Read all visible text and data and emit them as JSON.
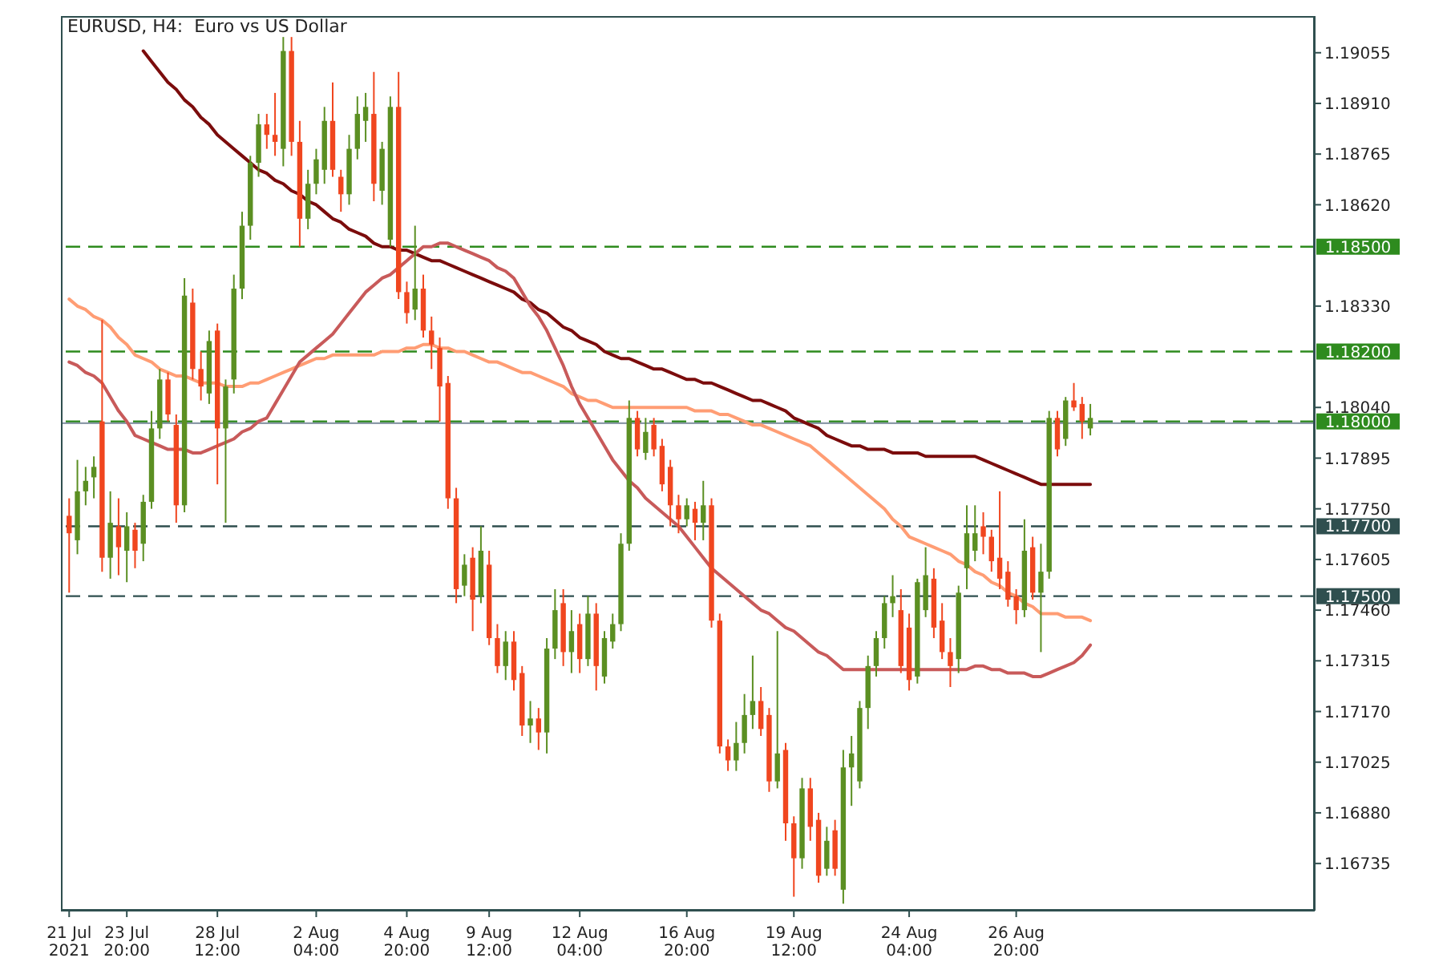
{
  "chart_data": {
    "type": "candlestick",
    "title": "EURUSD, H4:  Euro vs US Dollar",
    "categories": [
      "21 Jul 2021",
      null,
      null,
      null,
      null,
      null,
      null,
      "23 Jul 20:00",
      null,
      null,
      null,
      null,
      null,
      null,
      null,
      null,
      null,
      null,
      "28 Jul 12:00",
      null,
      null,
      null,
      null,
      null,
      null,
      null,
      null,
      null,
      null,
      null,
      "2 Aug 04:00",
      null,
      null,
      null,
      null,
      null,
      null,
      null,
      null,
      null,
      null,
      "4 Aug 20:00",
      null,
      null,
      null,
      null,
      null,
      null,
      null,
      null,
      null,
      "9 Aug 12:00",
      null,
      null,
      null,
      null,
      null,
      null,
      null,
      null,
      null,
      null,
      "12 Aug 04:00",
      null,
      null,
      null,
      null,
      null,
      null,
      null,
      null,
      null,
      null,
      null,
      null,
      "16 Aug 20:00",
      null,
      null,
      null,
      null,
      null,
      null,
      null,
      null,
      null,
      null,
      null,
      null,
      "19 Aug 12:00",
      null,
      null,
      null,
      null,
      null,
      null,
      null,
      null,
      null,
      null,
      null,
      null,
      null,
      "24 Aug 04:00",
      null,
      null,
      null,
      null,
      null,
      null,
      null,
      null,
      null,
      null,
      null,
      null,
      "26 Aug 20:00",
      null,
      null,
      null,
      null,
      null,
      null,
      null,
      null,
      null
    ],
    "ylim": [
      1.166,
      1.1916
    ],
    "yticks": [
      1.19055,
      {
        "value": 1.1891,
        "label": "1.18910"
      },
      1.18765,
      {
        "value": 1.1862,
        "label": "1.18620"
      },
      {
        "value": 1.1833,
        "label": "1.18330"
      },
      {
        "value": 1.1804,
        "label": "1.18040"
      },
      1.17895,
      {
        "value": 1.1775,
        "label": "1.17750"
      },
      1.17605,
      {
        "value": 1.1746,
        "label": "1.17460"
      },
      1.17315,
      {
        "value": 1.1717,
        "label": "1.17170"
      },
      1.17025,
      {
        "value": 1.1688,
        "label": "1.16880"
      },
      1.16735
    ],
    "ref_lines": [
      {
        "axis": "y",
        "value": 1.185,
        "label": "1.18500",
        "color": "#2e8b1e",
        "line_style": "dashed"
      },
      {
        "axis": "y",
        "value": 1.182,
        "label": "1.18200",
        "color": "#2e8b1e",
        "line_style": "dashed"
      },
      {
        "axis": "y",
        "value": 1.18,
        "label": "1.18000",
        "color": "#2e8b1e",
        "line_style": "dashed"
      },
      {
        "axis": "y",
        "value": 1.177,
        "label": "1.17700",
        "color": "#2f4f4f",
        "line_style": "dashed"
      },
      {
        "axis": "y",
        "value": 1.175,
        "label": "1.17500",
        "color": "#2f4f4f",
        "line_style": "dashed"
      },
      {
        "axis": "y",
        "value": 1.17995,
        "label": null,
        "color": "#8c9aa8",
        "line_style": "solid"
      }
    ],
    "ohlc": [
      [
        1.1773,
        1.1778,
        1.1751,
        1.1768
      ],
      [
        1.1766,
        1.1789,
        1.1762,
        1.178
      ],
      [
        1.178,
        1.1787,
        1.1776,
        1.1783
      ],
      [
        1.1784,
        1.179,
        1.1778,
        1.1787
      ],
      [
        1.18,
        1.1829,
        1.1757,
        1.1761
      ],
      [
        1.1761,
        1.178,
        1.1755,
        1.1771
      ],
      [
        1.177,
        1.1778,
        1.1756,
        1.1764
      ],
      [
        1.1763,
        1.1774,
        1.1754,
        1.177
      ],
      [
        1.1769,
        1.1771,
        1.1758,
        1.1763
      ],
      [
        1.1765,
        1.1779,
        1.176,
        1.1777
      ],
      [
        1.1777,
        1.1803,
        1.1775,
        1.1798
      ],
      [
        1.1798,
        1.1815,
        1.1795,
        1.1812
      ],
      [
        1.1812,
        1.1814,
        1.18,
        1.1802
      ],
      [
        1.1799,
        1.1802,
        1.1771,
        1.1776
      ],
      [
        1.1776,
        1.1841,
        1.1774,
        1.1836
      ],
      [
        1.1834,
        1.1838,
        1.1812,
        1.1815
      ],
      [
        1.1815,
        1.182,
        1.1806,
        1.181
      ],
      [
        1.1808,
        1.1826,
        1.1805,
        1.1823
      ],
      [
        1.1826,
        1.1828,
        1.1782,
        1.1798
      ],
      [
        1.1798,
        1.1812,
        1.1771,
        1.181
      ],
      [
        1.1812,
        1.1842,
        1.1808,
        1.1838
      ],
      [
        1.1838,
        1.186,
        1.1835,
        1.1856
      ],
      [
        1.1856,
        1.1876,
        1.1852,
        1.1874
      ],
      [
        1.1874,
        1.1888,
        1.187,
        1.1885
      ],
      [
        1.1885,
        1.1888,
        1.1878,
        1.1882
      ],
      [
        1.1882,
        1.1894,
        1.1876,
        1.188
      ],
      [
        1.1878,
        1.191,
        1.1873,
        1.1906
      ],
      [
        1.1906,
        1.191,
        1.1876,
        1.188
      ],
      [
        1.188,
        1.1886,
        1.185,
        1.1858
      ],
      [
        1.1858,
        1.1872,
        1.1855,
        1.1868
      ],
      [
        1.1868,
        1.1878,
        1.1865,
        1.1875
      ],
      [
        1.1872,
        1.189,
        1.1868,
        1.1886
      ],
      [
        1.1886,
        1.1897,
        1.187,
        1.1872
      ],
      [
        1.187,
        1.1872,
        1.186,
        1.1865
      ],
      [
        1.1865,
        1.1882,
        1.1862,
        1.1878
      ],
      [
        1.1878,
        1.1893,
        1.1875,
        1.1888
      ],
      [
        1.1886,
        1.1894,
        1.188,
        1.189
      ],
      [
        1.1888,
        1.19,
        1.1863,
        1.1868
      ],
      [
        1.1866,
        1.188,
        1.1862,
        1.1878
      ],
      [
        1.1852,
        1.1893,
        1.185,
        1.189
      ],
      [
        1.189,
        1.19,
        1.1835,
        1.1837
      ],
      [
        1.1837,
        1.184,
        1.1828,
        1.1831
      ],
      [
        1.1832,
        1.1856,
        1.1829,
        1.1838
      ],
      [
        1.1838,
        1.1842,
        1.1824,
        1.1826
      ],
      [
        1.1826,
        1.183,
        1.1815,
        1.1822
      ],
      [
        1.1821,
        1.1824,
        1.18,
        1.181
      ],
      [
        1.1811,
        1.1813,
        1.1775,
        1.1778
      ],
      [
        1.1778,
        1.1781,
        1.1748,
        1.1752
      ],
      [
        1.1753,
        1.1762,
        1.175,
        1.1759
      ],
      [
        1.1761,
        1.1764,
        1.174,
        1.1749
      ],
      [
        1.175,
        1.177,
        1.1748,
        1.1763
      ],
      [
        1.1759,
        1.1763,
        1.1736,
        1.1738
      ],
      [
        1.1738,
        1.1742,
        1.1728,
        1.173
      ],
      [
        1.173,
        1.174,
        1.1726,
        1.1737
      ],
      [
        1.1737,
        1.174,
        1.1723,
        1.1726
      ],
      [
        1.1728,
        1.173,
        1.171,
        1.1713
      ],
      [
        1.1713,
        1.172,
        1.1708,
        1.1715
      ],
      [
        1.1715,
        1.1718,
        1.1706,
        1.1711
      ],
      [
        1.1711,
        1.1738,
        1.1705,
        1.1735
      ],
      [
        1.1735,
        1.1752,
        1.1732,
        1.1746
      ],
      [
        1.1748,
        1.1752,
        1.173,
        1.1734
      ],
      [
        1.1734,
        1.1746,
        1.1728,
        1.174
      ],
      [
        1.1742,
        1.1745,
        1.1728,
        1.1732
      ],
      [
        1.1732,
        1.175,
        1.173,
        1.1745
      ],
      [
        1.1745,
        1.1748,
        1.1723,
        1.173
      ],
      [
        1.1727,
        1.174,
        1.1725,
        1.1738
      ],
      [
        1.1737,
        1.1745,
        1.1735,
        1.1742
      ],
      [
        1.1742,
        1.1768,
        1.174,
        1.1765
      ],
      [
        1.1765,
        1.1806,
        1.1763,
        1.1801
      ],
      [
        1.1801,
        1.1803,
        1.179,
        1.1792
      ],
      [
        1.1791,
        1.1801,
        1.1789,
        1.1797
      ],
      [
        1.1799,
        1.1801,
        1.179,
        1.1792
      ],
      [
        1.1793,
        1.1795,
        1.178,
        1.1782
      ],
      [
        1.1787,
        1.1789,
        1.177,
        1.1776
      ],
      [
        1.1776,
        1.1779,
        1.1768,
        1.1772
      ],
      [
        1.1772,
        1.1778,
        1.177,
        1.1776
      ],
      [
        1.1775,
        1.1777,
        1.1766,
        1.1771
      ],
      [
        1.1771,
        1.1783,
        1.1766,
        1.1776
      ],
      [
        1.1776,
        1.1778,
        1.1741,
        1.1743
      ],
      [
        1.1743,
        1.1745,
        1.1705,
        1.1707
      ],
      [
        1.1707,
        1.1709,
        1.17,
        1.1703
      ],
      [
        1.1703,
        1.1714,
        1.17,
        1.1708
      ],
      [
        1.1708,
        1.1722,
        1.1705,
        1.1716
      ],
      [
        1.1716,
        1.1733,
        1.1712,
        1.172
      ],
      [
        1.172,
        1.1724,
        1.171,
        1.1712
      ],
      [
        1.1716,
        1.1718,
        1.1694,
        1.1697
      ],
      [
        1.1697,
        1.174,
        1.1695,
        1.1705
      ],
      [
        1.1706,
        1.1708,
        1.168,
        1.1685
      ],
      [
        1.1685,
        1.1687,
        1.1664,
        1.1675
      ],
      [
        1.1675,
        1.1698,
        1.1672,
        1.1695
      ],
      [
        1.1695,
        1.1698,
        1.168,
        1.1684
      ],
      [
        1.1686,
        1.1688,
        1.1668,
        1.167
      ],
      [
        1.1672,
        1.1684,
        1.167,
        1.168
      ],
      [
        1.1683,
        1.1686,
        1.167,
        1.1672
      ],
      [
        1.1666,
        1.1706,
        1.1662,
        1.1701
      ],
      [
        1.1701,
        1.171,
        1.169,
        1.1705
      ],
      [
        1.1697,
        1.172,
        1.1695,
        1.1718
      ],
      [
        1.1718,
        1.1733,
        1.1712,
        1.173
      ],
      [
        1.173,
        1.174,
        1.1727,
        1.1738
      ],
      [
        1.1738,
        1.175,
        1.1735,
        1.1748
      ],
      [
        1.1748,
        1.1756,
        1.1744,
        1.175
      ],
      [
        1.1746,
        1.1752,
        1.1728,
        1.173
      ],
      [
        1.1741,
        1.1745,
        1.1723,
        1.1726
      ],
      [
        1.1727,
        1.1755,
        1.1725,
        1.1754
      ],
      [
        1.1746,
        1.1764,
        1.1744,
        1.1756
      ],
      [
        1.1755,
        1.1758,
        1.1738,
        1.1741
      ],
      [
        1.1743,
        1.1748,
        1.1732,
        1.1734
      ],
      [
        1.1734,
        1.1738,
        1.1724,
        1.173
      ],
      [
        1.1732,
        1.1753,
        1.1728,
        1.1751
      ],
      [
        1.1758,
        1.1776,
        1.1752,
        1.1768
      ],
      [
        1.1763,
        1.1776,
        1.176,
        1.1768
      ],
      [
        1.177,
        1.1774,
        1.1762,
        1.1767
      ],
      [
        1.1767,
        1.1769,
        1.1757,
        1.176
      ],
      [
        1.1761,
        1.178,
        1.1752,
        1.1755
      ],
      [
        1.1757,
        1.176,
        1.1747,
        1.1749
      ],
      [
        1.175,
        1.1752,
        1.1742,
        1.1746
      ],
      [
        1.1746,
        1.1772,
        1.1744,
        1.1763
      ],
      [
        1.1764,
        1.1767,
        1.1749,
        1.1751
      ],
      [
        1.1751,
        1.1765,
        1.1734,
        1.1757
      ],
      [
        1.1757,
        1.1803,
        1.1755,
        1.1801
      ],
      [
        1.1801,
        1.1803,
        1.179,
        1.1792
      ],
      [
        1.1795,
        1.1807,
        1.1793,
        1.1806
      ],
      [
        1.1806,
        1.1811,
        1.1803,
        1.1804
      ],
      [
        1.1805,
        1.1807,
        1.1795,
        1.18
      ],
      [
        1.1798,
        1.1805,
        1.1796,
        1.1801
      ]
    ],
    "colors": [
      "#f0461f",
      "#5b8f22",
      "#5b8f22",
      "#5b8f22",
      "#f0461f",
      "#5b8f22",
      "#f0461f",
      "#5b8f22",
      "#f0461f",
      "#5b8f22",
      "#5b8f22",
      "#5b8f22",
      "#f0461f",
      "#f0461f",
      "#5b8f22",
      "#f0461f",
      "#f0461f",
      "#5b8f22",
      "#f0461f",
      "#5b8f22",
      "#5b8f22",
      "#5b8f22",
      "#5b8f22",
      "#5b8f22",
      "#f0461f",
      "#f0461f",
      "#5b8f22",
      "#f0461f",
      "#f0461f",
      "#5b8f22",
      "#5b8f22",
      "#5b8f22",
      "#f0461f",
      "#f0461f",
      "#5b8f22",
      "#5b8f22",
      "#5b8f22",
      "#f0461f",
      "#5b8f22",
      "#5b8f22",
      "#f0461f",
      "#f0461f",
      "#5b8f22",
      "#f0461f",
      "#f0461f",
      "#f0461f",
      "#f0461f",
      "#f0461f",
      "#5b8f22",
      "#f0461f",
      "#5b8f22",
      "#f0461f",
      "#f0461f",
      "#5b8f22",
      "#f0461f",
      "#f0461f",
      "#5b8f22",
      "#f0461f",
      "#5b8f22",
      "#5b8f22",
      "#f0461f",
      "#5b8f22",
      "#f0461f",
      "#5b8f22",
      "#f0461f",
      "#5b8f22",
      "#5b8f22",
      "#5b8f22",
      "#5b8f22",
      "#f0461f",
      "#5b8f22",
      "#f0461f",
      "#f0461f",
      "#f0461f",
      "#f0461f",
      "#5b8f22",
      "#f0461f",
      "#5b8f22",
      "#f0461f",
      "#f0461f",
      "#f0461f",
      "#5b8f22",
      "#5b8f22",
      "#5b8f22",
      "#f0461f",
      "#f0461f",
      "#5b8f22",
      "#f0461f",
      "#f0461f",
      "#5b8f22",
      "#f0461f",
      "#f0461f",
      "#5b8f22",
      "#f0461f",
      "#5b8f22",
      "#5b8f22",
      "#5b8f22",
      "#5b8f22",
      "#5b8f22",
      "#5b8f22",
      "#5b8f22",
      "#f0461f",
      "#f0461f",
      "#5b8f22",
      "#5b8f22",
      "#f0461f",
      "#f0461f",
      "#f0461f",
      "#5b8f22",
      "#5b8f22",
      "#5b8f22",
      "#f0461f",
      "#f0461f",
      "#f0461f",
      "#f0461f",
      "#f0461f",
      "#5b8f22",
      "#f0461f",
      "#5b8f22",
      "#5b8f22",
      "#f0461f",
      "#5b8f22",
      "#f0461f",
      "#f0461f",
      "#5b8f22"
    ],
    "series": [
      {
        "type": "line",
        "color": "#7b0c0c",
        "values": [
          null,
          null,
          null,
          null,
          null,
          null,
          null,
          null,
          null,
          1.1906,
          1.1903,
          1.19,
          1.1897,
          1.1895,
          1.1892,
          1.189,
          1.1887,
          1.1885,
          1.1882,
          1.188,
          1.1878,
          1.1876,
          1.1874,
          1.1872,
          1.1871,
          1.1869,
          1.1868,
          1.1866,
          1.1865,
          1.1863,
          1.1862,
          1.186,
          1.1858,
          1.1857,
          1.1855,
          1.1854,
          1.1853,
          1.1851,
          1.185,
          1.185,
          1.1849,
          1.1849,
          1.1848,
          1.1847,
          1.1846,
          1.1846,
          1.1845,
          1.1844,
          1.1843,
          1.1842,
          1.1841,
          1.184,
          1.1839,
          1.1838,
          1.1837,
          1.1835,
          1.1834,
          1.1832,
          1.1831,
          1.1829,
          1.1827,
          1.1826,
          1.1824,
          1.1823,
          1.1822,
          1.182,
          1.1819,
          1.1818,
          1.1818,
          1.1817,
          1.1816,
          1.1815,
          1.1815,
          1.1814,
          1.1813,
          1.1812,
          1.1812,
          1.1811,
          1.1811,
          1.181,
          1.1809,
          1.1808,
          1.1807,
          1.1806,
          1.1806,
          1.1805,
          1.1804,
          1.1803,
          1.1801,
          1.18,
          1.1799,
          1.1798,
          1.1796,
          1.1795,
          1.1794,
          1.1793,
          1.1793,
          1.1792,
          1.1792,
          1.1792,
          1.1791,
          1.1791,
          1.1791,
          1.1791,
          1.179,
          1.179,
          1.179,
          1.179,
          1.179,
          1.179,
          1.179,
          1.1789,
          1.1788,
          1.1787,
          1.1786,
          1.1785,
          1.1784,
          1.1783,
          1.1782,
          1.1782,
          1.1782,
          1.1782,
          1.1782,
          1.1782,
          1.1782
        ]
      },
      {
        "type": "line",
        "color": "#ff9d74",
        "values": [
          1.1835,
          1.1833,
          1.1832,
          1.183,
          1.1829,
          1.1827,
          1.1824,
          1.1822,
          1.1819,
          1.1818,
          1.1817,
          1.1815,
          1.1814,
          1.1813,
          1.1813,
          1.1812,
          1.1811,
          1.1811,
          1.1811,
          1.181,
          1.181,
          1.181,
          1.1811,
          1.1811,
          1.1812,
          1.1813,
          1.1814,
          1.1815,
          1.1816,
          1.1817,
          1.1818,
          1.1818,
          1.1819,
          1.1819,
          1.1819,
          1.1819,
          1.1819,
          1.1819,
          1.182,
          1.182,
          1.182,
          1.1821,
          1.1821,
          1.1822,
          1.1822,
          1.1821,
          1.1821,
          1.182,
          1.182,
          1.1819,
          1.1818,
          1.1817,
          1.1817,
          1.1816,
          1.1815,
          1.1814,
          1.1814,
          1.1813,
          1.1812,
          1.1811,
          1.181,
          1.1808,
          1.1807,
          1.1806,
          1.1806,
          1.1805,
          1.1804,
          1.1804,
          1.1804,
          1.1804,
          1.1804,
          1.1804,
          1.1804,
          1.1804,
          1.1804,
          1.1804,
          1.1803,
          1.1803,
          1.1803,
          1.1802,
          1.1802,
          1.1801,
          1.18,
          1.1799,
          1.1799,
          1.1798,
          1.1797,
          1.1796,
          1.1795,
          1.1794,
          1.1793,
          1.1791,
          1.1789,
          1.1787,
          1.1785,
          1.1783,
          1.1781,
          1.1779,
          1.1777,
          1.1775,
          1.1772,
          1.177,
          1.1767,
          1.1766,
          1.1765,
          1.1764,
          1.1763,
          1.1762,
          1.176,
          1.1759,
          1.1757,
          1.1756,
          1.1754,
          1.1753,
          1.1751,
          1.175,
          1.1748,
          1.1747,
          1.1745,
          1.1745,
          1.1745,
          1.1744,
          1.1744,
          1.1744,
          1.1743
        ]
      },
      {
        "type": "line",
        "color": "#c85a5a",
        "values": [
          1.1817,
          1.1816,
          1.1814,
          1.1813,
          1.1811,
          1.1807,
          1.1803,
          1.18,
          1.1796,
          1.1795,
          1.1794,
          1.1793,
          1.1792,
          1.1792,
          1.1792,
          1.1791,
          1.1791,
          1.1792,
          1.1793,
          1.1794,
          1.1795,
          1.1797,
          1.1798,
          1.18,
          1.1801,
          1.1805,
          1.1809,
          1.1813,
          1.1817,
          1.1819,
          1.1821,
          1.1823,
          1.1825,
          1.1828,
          1.1831,
          1.1834,
          1.1837,
          1.1839,
          1.1841,
          1.1842,
          1.1844,
          1.1846,
          1.1848,
          1.185,
          1.185,
          1.1851,
          1.1851,
          1.185,
          1.1849,
          1.1848,
          1.1847,
          1.1846,
          1.1844,
          1.1843,
          1.1841,
          1.1837,
          1.1833,
          1.183,
          1.1826,
          1.1821,
          1.1816,
          1.181,
          1.1805,
          1.1801,
          1.1797,
          1.1793,
          1.1789,
          1.1786,
          1.1783,
          1.1781,
          1.1778,
          1.1776,
          1.1774,
          1.1772,
          1.177,
          1.1767,
          1.1764,
          1.1761,
          1.1758,
          1.1756,
          1.1754,
          1.1752,
          1.175,
          1.1748,
          1.1746,
          1.1745,
          1.1743,
          1.1741,
          1.174,
          1.1738,
          1.1736,
          1.1734,
          1.1733,
          1.1731,
          1.1729,
          1.1729,
          1.1729,
          1.1729,
          1.1729,
          1.1729,
          1.1729,
          1.1729,
          1.1729,
          1.1729,
          1.1729,
          1.1729,
          1.1729,
          1.1729,
          1.1729,
          1.1729,
          1.173,
          1.173,
          1.1729,
          1.1729,
          1.1728,
          1.1728,
          1.1728,
          1.1727,
          1.1727,
          1.1728,
          1.1729,
          1.173,
          1.1731,
          1.1733,
          1.1736
        ]
      }
    ]
  }
}
